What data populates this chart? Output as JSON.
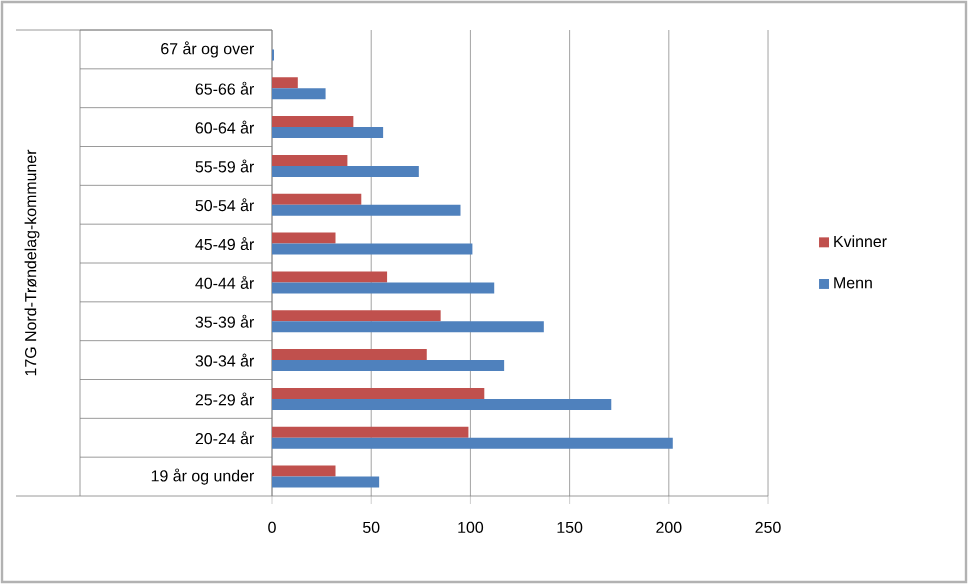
{
  "chart_data": {
    "type": "bar",
    "orientation": "horizontal",
    "annotations": [
      "17G Nord-Trøndelag-kommuner"
    ],
    "categories": [
      "67 år og over",
      "65-66 år",
      "60-64 år",
      "55-59 år",
      "50-54 år",
      "45-49 år",
      "40-44 år",
      "35-39 år",
      "30-34 år",
      "25-29 år",
      "20-24 år",
      "19 år og under"
    ],
    "series": [
      {
        "name": "Kvinner",
        "color": "#c0504d",
        "values": [
          0,
          13,
          41,
          38,
          45,
          32,
          58,
          85,
          78,
          107,
          99,
          32
        ]
      },
      {
        "name": "Menn",
        "color": "#4f81bd",
        "values": [
          1,
          27,
          56,
          74,
          95,
          101,
          112,
          137,
          117,
          171,
          202,
          54
        ]
      }
    ],
    "xlim": [
      0,
      250
    ],
    "xticks": [
      0,
      50,
      100,
      150,
      200,
      250
    ],
    "grid": "x",
    "legend": "right"
  }
}
